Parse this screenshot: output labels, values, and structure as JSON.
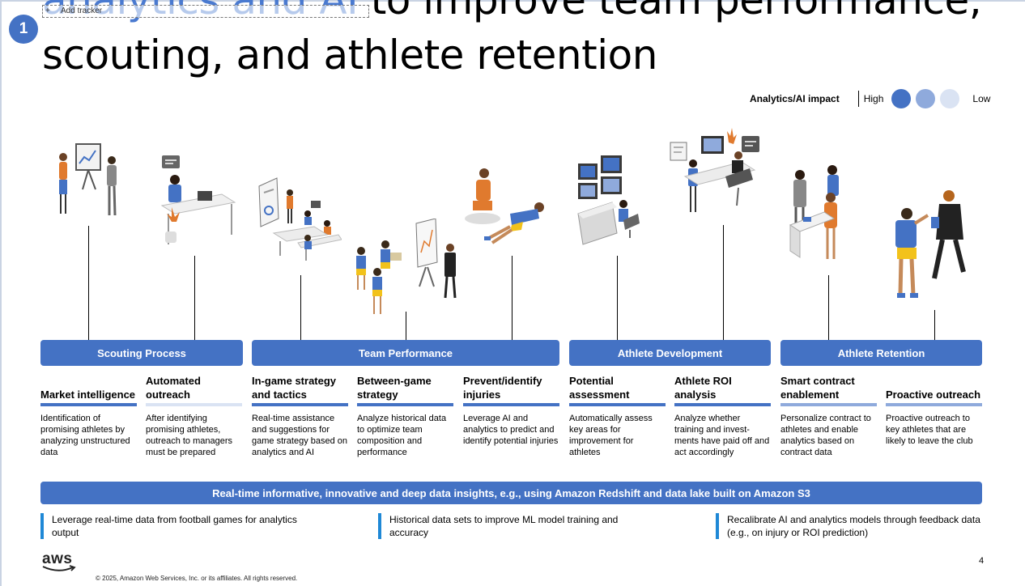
{
  "title": {
    "highlight": "analytics and AI",
    "line1_rest": " to improve team performance,",
    "line2": "scouting, and athlete retention"
  },
  "tracker": {
    "icon": "plus-icon",
    "label": "Add tracker"
  },
  "badge": {
    "number": "1"
  },
  "legend": {
    "label": "Analytics/AI impact",
    "high": "High",
    "low": "Low",
    "colors": [
      "#4472c4",
      "#8faadc",
      "#dae3f3"
    ]
  },
  "categories": [
    {
      "label": "Scouting Process"
    },
    {
      "label": "Team Performance"
    },
    {
      "label": "Athlete Development"
    },
    {
      "label": "Athlete Retention"
    }
  ],
  "columns": [
    {
      "heading": "Market intelligence",
      "description": "Identification of promising athletes by analyzing unstructured data",
      "impact_color": "#4472c4"
    },
    {
      "heading": "Automated outreach",
      "description": "After identifying promising athletes, outreach to managers must be prepared",
      "impact_color": "#dae3f3"
    },
    {
      "heading": "In-game strategy and tactics",
      "description": "Real-time assistance and suggestions for game strategy based on analytics and AI",
      "impact_color": "#4472c4"
    },
    {
      "heading": "Between-game strategy",
      "description": "Analyze historical data to optimize team composition and performance",
      "impact_color": "#4472c4"
    },
    {
      "heading": "Prevent/identify injuries",
      "description": "Leverage AI and analytics to predict and identify potential injuries",
      "impact_color": "#4472c4"
    },
    {
      "heading": "Potential assessment",
      "description": "Automatically assess key areas for improvement for athletes",
      "impact_color": "#4472c4"
    },
    {
      "heading": "Athlete ROI analysis",
      "description": "Analyze whether training and invest-ments have paid off and act accordingly",
      "impact_color": "#4472c4"
    },
    {
      "heading": "Smart contract enablement",
      "description": "Personalize contract to athletes and enable analytics based on contract data",
      "impact_color": "#8faadc"
    },
    {
      "heading": "Proactive outreach",
      "description": "Proactive outreach to key athletes that are likely to leave the club",
      "impact_color": "#8faadc"
    }
  ],
  "banner": {
    "text": "Real-time informative, innovative and deep data insights, e.g., using Amazon Redshift and data lake built on Amazon S3"
  },
  "bullets": [
    {
      "text": "Leverage real-time data from football games for analytics output"
    },
    {
      "text": "Historical data sets to improve ML model training and accuracy"
    },
    {
      "text": "Recalibrate AI and analytics models through feedback data (e.g., on injury or ROI prediction)"
    }
  ],
  "footer": {
    "logo": "aws",
    "copyright": "© 2025, Amazon Web Services, Inc. or its affiliates. All rights reserved.",
    "page_number": "4"
  }
}
